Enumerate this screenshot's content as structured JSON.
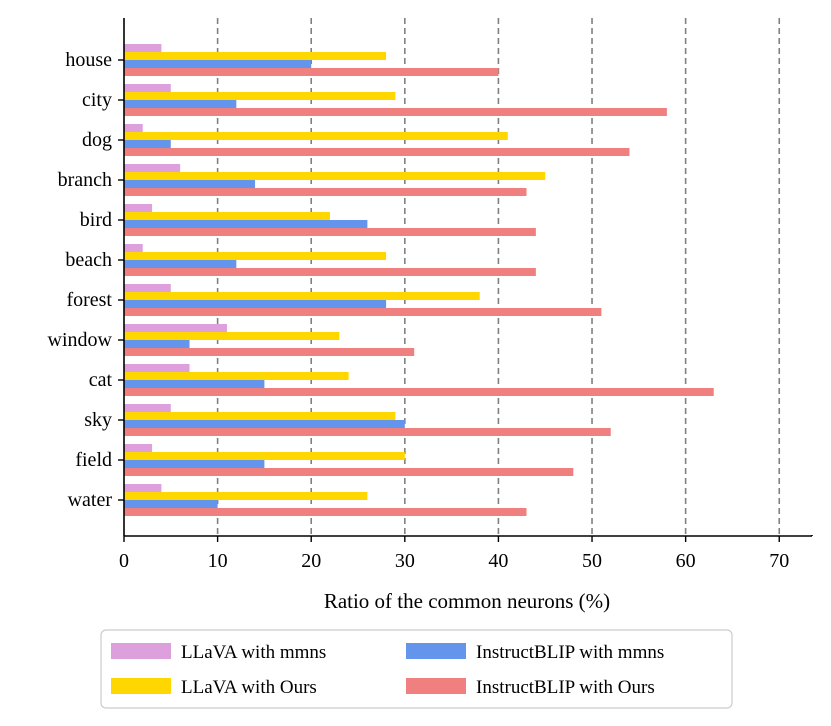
{
  "chart_data": {
    "type": "bar",
    "orientation": "horizontal",
    "categories": [
      "house",
      "city",
      "dog",
      "branch",
      "bird",
      "beach",
      "forest",
      "window",
      "cat",
      "sky",
      "field",
      "water"
    ],
    "series": [
      {
        "name": "LLaVA with mmns",
        "color": "#DDA0DD",
        "values": [
          4,
          5,
          2,
          6,
          3,
          2,
          5,
          11,
          7,
          5,
          3,
          4
        ]
      },
      {
        "name": "LLaVA with Ours",
        "color": "#FFD700",
        "values": [
          28,
          29,
          41,
          45,
          22,
          28,
          38,
          23,
          24,
          29,
          30,
          26
        ]
      },
      {
        "name": "InstructBLIP with mmns",
        "color": "#6495ED",
        "values": [
          20,
          12,
          5,
          14,
          26,
          12,
          28,
          7,
          15,
          30,
          15,
          10
        ]
      },
      {
        "name": "InstructBLIP with Ours",
        "color": "#F08080",
        "values": [
          40,
          58,
          54,
          43,
          44,
          44,
          51,
          31,
          63,
          52,
          48,
          43
        ]
      }
    ],
    "xlabel": "Ratio of the common neurons (%)",
    "ylabel": "",
    "xlim": [
      0,
      73.5
    ],
    "xticks": [
      0,
      10,
      20,
      30,
      40,
      50,
      60,
      70
    ],
    "grid": "vertical dashed at 10-unit intervals",
    "legend_position": "bottom-center"
  }
}
